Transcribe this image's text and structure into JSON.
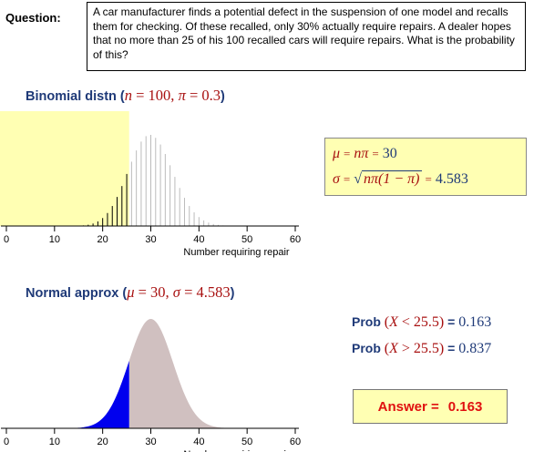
{
  "question": {
    "label": "Question:",
    "text": "A car manufacturer finds a potential defect in the suspension of one model and recalls them for checking. Of these recalled, only 30% actually require repairs. A dealer hopes that no more than 25 of his 100 recalled cars will require repairs. What is the probability of this?"
  },
  "binomial": {
    "title_prefix": "Binomial distn (",
    "n_sym": "n",
    "n_eq": " = 100, ",
    "pi_sym": "π",
    "pi_eq": " = 0.3",
    "title_suffix": ")"
  },
  "stats": {
    "mu_sym": "μ",
    "mu_eq": "=",
    "mu_formula": "nπ",
    "mu_eq2": "=",
    "mu_value": "30",
    "sigma_sym": "σ",
    "sigma_eq": "=",
    "sigma_formula": "nπ(1 − π)",
    "sigma_eq2": "=",
    "sigma_value": "4.583"
  },
  "normal": {
    "title_prefix": "Normal approx (",
    "mu_sym": "μ",
    "mu_eq": " = 30, ",
    "sigma_sym": "σ",
    "sigma_eq": " = 4.583",
    "title_suffix": ")"
  },
  "probabilities": {
    "less": {
      "prefix": "Prob ",
      "open": "(",
      "var": "X",
      "rel": " < 25.5",
      "close": ")",
      "eq": " = ",
      "value": "0.163"
    },
    "greater": {
      "prefix": "Prob ",
      "open": "(",
      "var": "X",
      "rel": " > 25.5",
      "close": ")",
      "eq": " = ",
      "value": "0.837"
    }
  },
  "answer": {
    "label": "Answer =",
    "value": "0.163"
  },
  "colors": {
    "highlight": "#ffffb3",
    "left_tail": "#0000ee",
    "right_area": "#d0c0c0",
    "bar_dark": "#000000",
    "bar_light": "#bbbbbb",
    "title": "#1f3a78",
    "math": "#a81010",
    "answer_text": "#e01010"
  },
  "chart_data": [
    {
      "type": "bar",
      "n": 100,
      "pi": 0.3,
      "cutoff": 25.5,
      "xlim": [
        0,
        60
      ],
      "xticks": [
        0,
        10,
        20,
        30,
        40,
        50,
        60
      ],
      "xlabel": "Number requiring repair",
      "highlight_range": [
        0,
        25.5
      ]
    },
    {
      "type": "area",
      "mu": 30,
      "sigma": 4.583,
      "cutoff": 25.5,
      "xlim": [
        0,
        60
      ],
      "xticks": [
        0,
        10,
        20,
        30,
        40,
        50,
        60
      ],
      "xlabel": "Number requiring repair"
    }
  ]
}
